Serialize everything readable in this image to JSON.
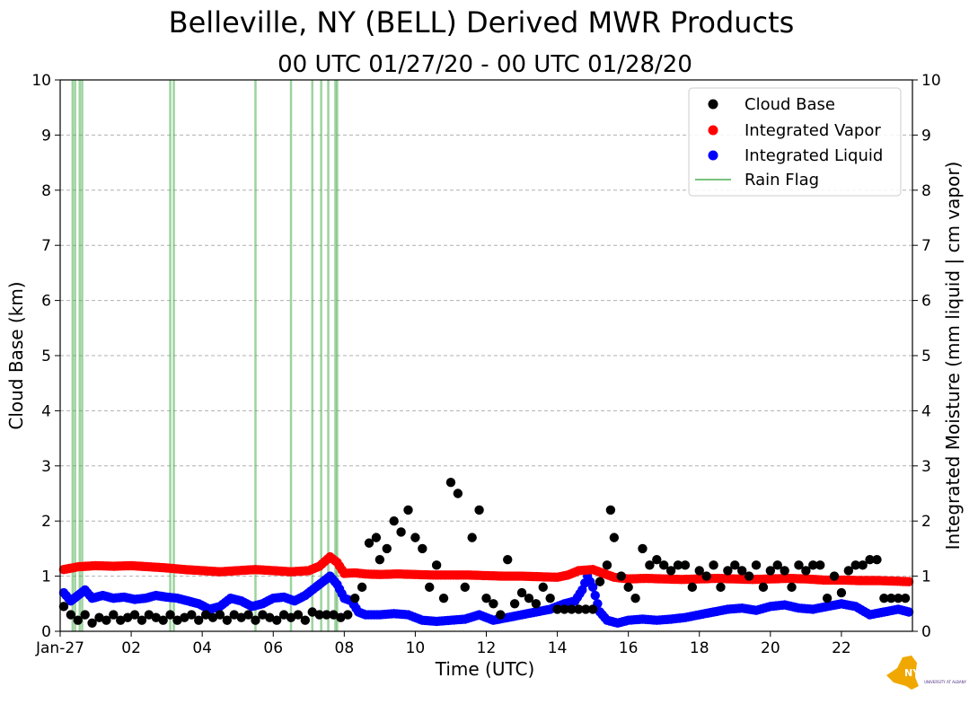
{
  "chart_data": {
    "type": "scatter",
    "title": "Belleville, NY (BELL) Derived MWR Products",
    "subtitle": "00 UTC 01/27/20 - 00 UTC 01/28/20",
    "xlabel": "Time (UTC)",
    "ylabel_left": "Cloud Base (km)",
    "ylabel_right": "Integrated Moisture (mm liquid | cm vapor)",
    "xlim": [
      0,
      24
    ],
    "ylim": [
      0,
      10
    ],
    "x_ticks": [
      {
        "value": 0,
        "label": "Jan-27"
      },
      {
        "value": 2,
        "label": "02"
      },
      {
        "value": 4,
        "label": "04"
      },
      {
        "value": 6,
        "label": "06"
      },
      {
        "value": 8,
        "label": "08"
      },
      {
        "value": 10,
        "label": "10"
      },
      {
        "value": 12,
        "label": "12"
      },
      {
        "value": 14,
        "label": "14"
      },
      {
        "value": 16,
        "label": "16"
      },
      {
        "value": 18,
        "label": "18"
      },
      {
        "value": 20,
        "label": "20"
      },
      {
        "value": 22,
        "label": "22"
      }
    ],
    "y_ticks": [
      "0",
      "1",
      "2",
      "3",
      "4",
      "5",
      "6",
      "7",
      "8",
      "9",
      "10"
    ],
    "grid": "horizontal dashed",
    "legend_position": "top-right",
    "colors": {
      "cloud_base": "#000000",
      "vapor": "#ff0000",
      "liquid": "#0000ff",
      "rain_flag": "#4caf50"
    },
    "series": [
      {
        "name": "Cloud Base",
        "marker": "circle",
        "color": "#000000",
        "x": [
          0.1,
          0.3,
          0.5,
          0.7,
          0.9,
          1.1,
          1.3,
          1.5,
          1.7,
          1.9,
          2.1,
          2.3,
          2.5,
          2.7,
          2.9,
          3.1,
          3.3,
          3.5,
          3.7,
          3.9,
          4.1,
          4.3,
          4.5,
          4.7,
          4.9,
          5.1,
          5.3,
          5.5,
          5.7,
          5.9,
          6.1,
          6.3,
          6.5,
          6.7,
          6.9,
          7.1,
          7.3,
          7.5,
          7.7,
          7.9,
          8.1,
          8.3,
          8.5,
          8.7,
          8.9,
          9.0,
          9.2,
          9.4,
          9.6,
          9.8,
          10.0,
          10.2,
          10.4,
          10.6,
          10.8,
          11.0,
          11.2,
          11.4,
          11.6,
          11.8,
          12.0,
          12.2,
          12.4,
          12.6,
          12.8,
          13.0,
          13.2,
          13.4,
          13.6,
          13.8,
          14.0,
          14.2,
          14.4,
          14.6,
          14.8,
          15.0,
          15.2,
          15.4,
          15.5,
          15.6,
          15.8,
          16.0,
          16.2,
          16.4,
          16.6,
          16.8,
          17.0,
          17.2,
          17.4,
          17.6,
          17.8,
          18.0,
          18.2,
          18.4,
          18.6,
          18.8,
          19.0,
          19.2,
          19.4,
          19.6,
          19.8,
          20.0,
          20.2,
          20.4,
          20.6,
          20.8,
          21.0,
          21.2,
          21.4,
          21.6,
          21.8,
          22.0,
          22.2,
          22.4,
          22.6,
          22.8,
          23.0,
          23.2,
          23.4,
          23.6,
          23.8
        ],
        "y": [
          0.45,
          0.3,
          0.2,
          0.3,
          0.15,
          0.25,
          0.2,
          0.3,
          0.2,
          0.25,
          0.3,
          0.2,
          0.3,
          0.25,
          0.2,
          0.3,
          0.2,
          0.25,
          0.3,
          0.2,
          0.3,
          0.25,
          0.3,
          0.2,
          0.3,
          0.25,
          0.3,
          0.2,
          0.3,
          0.25,
          0.2,
          0.3,
          0.25,
          0.3,
          0.2,
          0.35,
          0.3,
          0.3,
          0.3,
          0.25,
          0.3,
          0.6,
          0.8,
          1.6,
          1.7,
          1.3,
          1.5,
          2.0,
          1.8,
          2.2,
          1.7,
          1.5,
          0.8,
          1.2,
          0.6,
          2.7,
          2.5,
          0.8,
          1.7,
          2.2,
          0.6,
          0.5,
          0.3,
          1.3,
          0.5,
          0.7,
          0.6,
          0.5,
          0.8,
          0.6,
          0.4,
          0.4,
          0.4,
          0.4,
          0.4,
          0.4,
          0.9,
          1.2,
          2.2,
          1.7,
          1.0,
          0.8,
          0.6,
          1.5,
          1.2,
          1.3,
          1.2,
          1.1,
          1.2,
          1.2,
          0.8,
          1.1,
          1.0,
          1.2,
          0.8,
          1.1,
          1.2,
          1.1,
          1.0,
          1.2,
          0.8,
          1.1,
          1.2,
          1.1,
          0.8,
          1.2,
          1.1,
          1.2,
          1.2,
          0.6,
          1.0,
          0.7,
          1.1,
          1.2,
          1.2,
          1.3,
          1.3,
          0.6,
          0.6,
          0.6,
          0.6
        ]
      },
      {
        "name": "Integrated Vapor",
        "marker": "circle",
        "color": "#ff0000",
        "x": [
          0.1,
          0.5,
          1.0,
          1.5,
          2.0,
          2.5,
          3.0,
          3.5,
          4.0,
          4.5,
          5.0,
          5.5,
          6.0,
          6.5,
          7.0,
          7.3,
          7.6,
          7.8,
          8.0,
          8.3,
          8.6,
          9.0,
          9.5,
          10.0,
          10.5,
          11.0,
          11.5,
          12.0,
          12.5,
          13.0,
          13.5,
          14.0,
          14.3,
          14.6,
          15.0,
          15.3,
          15.6,
          16.0,
          16.5,
          17.0,
          17.5,
          18.0,
          18.5,
          19.0,
          19.5,
          20.0,
          20.5,
          21.0,
          21.5,
          22.0,
          22.5,
          23.0,
          23.5,
          23.9
        ],
        "y": [
          1.12,
          1.17,
          1.19,
          1.18,
          1.19,
          1.17,
          1.15,
          1.12,
          1.1,
          1.08,
          1.1,
          1.12,
          1.1,
          1.08,
          1.1,
          1.18,
          1.35,
          1.25,
          1.05,
          1.06,
          1.04,
          1.03,
          1.04,
          1.03,
          1.02,
          1.02,
          1.02,
          1.01,
          1.0,
          1.0,
          0.99,
          0.98,
          1.02,
          1.1,
          1.12,
          1.05,
          0.98,
          0.95,
          0.96,
          0.95,
          0.94,
          0.95,
          0.96,
          0.95,
          0.94,
          0.95,
          0.96,
          0.95,
          0.93,
          0.93,
          0.92,
          0.92,
          0.91,
          0.9
        ]
      },
      {
        "name": "Integrated Liquid",
        "marker": "circle",
        "color": "#0000ff",
        "x": [
          0.1,
          0.3,
          0.5,
          0.7,
          0.9,
          1.2,
          1.5,
          1.8,
          2.1,
          2.4,
          2.7,
          3.0,
          3.3,
          3.6,
          3.9,
          4.2,
          4.5,
          4.8,
          5.1,
          5.4,
          5.7,
          6.0,
          6.3,
          6.6,
          6.9,
          7.2,
          7.4,
          7.6,
          7.8,
          8.0,
          8.2,
          8.4,
          8.6,
          9.0,
          9.4,
          9.8,
          10.2,
          10.6,
          11.0,
          11.4,
          11.8,
          12.2,
          12.6,
          13.0,
          13.4,
          13.8,
          14.2,
          14.5,
          14.7,
          14.85,
          15.0,
          15.2,
          15.4,
          15.7,
          16.0,
          16.4,
          16.8,
          17.2,
          17.6,
          18.0,
          18.4,
          18.8,
          19.2,
          19.6,
          20.0,
          20.4,
          20.8,
          21.2,
          21.6,
          22.0,
          22.4,
          22.8,
          23.2,
          23.6,
          23.9
        ],
        "y": [
          0.7,
          0.55,
          0.65,
          0.75,
          0.6,
          0.65,
          0.6,
          0.62,
          0.58,
          0.6,
          0.65,
          0.62,
          0.6,
          0.55,
          0.5,
          0.4,
          0.45,
          0.6,
          0.55,
          0.45,
          0.5,
          0.6,
          0.62,
          0.55,
          0.65,
          0.8,
          0.9,
          1.0,
          0.85,
          0.6,
          0.55,
          0.35,
          0.3,
          0.3,
          0.32,
          0.3,
          0.2,
          0.18,
          0.2,
          0.22,
          0.3,
          0.2,
          0.25,
          0.3,
          0.35,
          0.4,
          0.5,
          0.55,
          0.75,
          1.0,
          0.8,
          0.35,
          0.2,
          0.15,
          0.2,
          0.22,
          0.2,
          0.22,
          0.25,
          0.3,
          0.35,
          0.4,
          0.42,
          0.38,
          0.45,
          0.48,
          0.42,
          0.4,
          0.45,
          0.5,
          0.45,
          0.3,
          0.35,
          0.4,
          0.35
        ]
      },
      {
        "name": "Rain Flag",
        "marker": "vline",
        "color": "#4caf50",
        "x": [
          0.35,
          0.42,
          0.55,
          0.62,
          3.1,
          3.2,
          5.5,
          6.5,
          7.1,
          7.35,
          7.55,
          7.75,
          7.8
        ]
      }
    ]
  },
  "logo": {
    "text": "NYS Mesonet",
    "subtext": "UNIVERSITY AT ALBANY"
  }
}
